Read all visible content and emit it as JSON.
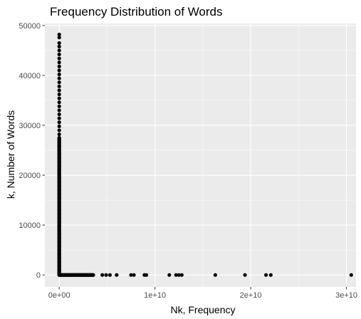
{
  "chart_data": {
    "type": "scatter",
    "title": "Frequency Distribution of Words",
    "xlabel": "Nk, Frequency",
    "ylabel": "k, Number of Words",
    "xlim": [
      -1500000000,
      31000000000
    ],
    "ylim": [
      -2400,
      50400
    ],
    "x_ticks": [
      0,
      10000000000,
      20000000000,
      30000000000
    ],
    "x_tick_labels": [
      "0e+00",
      "1e+10",
      "2e+10",
      "3e+10"
    ],
    "y_ticks": [
      0,
      10000,
      20000,
      30000,
      40000,
      50000
    ],
    "y_tick_labels": [
      "0",
      "10000",
      "20000",
      "30000",
      "40000",
      "50000"
    ],
    "grid": true,
    "legend": "none",
    "colors": {
      "panel": "#ebebeb",
      "grid": "#ffffff",
      "point": "#000000",
      "tick": "#4d4d4d"
    },
    "points": [
      {
        "x": 0,
        "y": 48200
      },
      {
        "x": 0,
        "y": 47600
      },
      {
        "x": 0,
        "y": 46500
      },
      {
        "x": 0,
        "y": 45800
      },
      {
        "x": 0,
        "y": 45000
      },
      {
        "x": 0,
        "y": 44200
      },
      {
        "x": 0,
        "y": 43400
      },
      {
        "x": 0,
        "y": 42600
      },
      {
        "x": 0,
        "y": 41800
      },
      {
        "x": 0,
        "y": 41000
      },
      {
        "x": 0,
        "y": 40200
      },
      {
        "x": 0,
        "y": 39400
      },
      {
        "x": 0,
        "y": 38600
      },
      {
        "x": 0,
        "y": 37800
      },
      {
        "x": 0,
        "y": 37000
      },
      {
        "x": 0,
        "y": 36200
      },
      {
        "x": 0,
        "y": 35400
      },
      {
        "x": 0,
        "y": 34600
      },
      {
        "x": 0,
        "y": 33800
      },
      {
        "x": 0,
        "y": 33000
      },
      {
        "x": 0,
        "y": 32200
      },
      {
        "x": 0,
        "y": 31400
      },
      {
        "x": 0,
        "y": 30600
      },
      {
        "x": 0,
        "y": 29800
      },
      {
        "x": 0,
        "y": 29000
      },
      {
        "x": 0,
        "y": 28200
      },
      {
        "x": 0,
        "y": 27400
      },
      {
        "x": 0,
        "y": 26600
      },
      {
        "x": 0,
        "y": 25800
      },
      {
        "x": 0,
        "y": 25000
      },
      {
        "x": 0,
        "y": 24200
      },
      {
        "x": 0,
        "y": 23400
      },
      {
        "x": 0,
        "y": 22600
      },
      {
        "x": 0,
        "y": 21800
      },
      {
        "x": 0,
        "y": 21000
      },
      {
        "x": 0,
        "y": 20200
      },
      {
        "x": 0,
        "y": 19400
      },
      {
        "x": 0,
        "y": 18600
      },
      {
        "x": 0,
        "y": 17800
      },
      {
        "x": 0,
        "y": 17000
      },
      {
        "x": 0,
        "y": 16200
      },
      {
        "x": 0,
        "y": 15400
      },
      {
        "x": 0,
        "y": 14600
      },
      {
        "x": 0,
        "y": 13800
      },
      {
        "x": 0,
        "y": 13000
      },
      {
        "x": 0,
        "y": 12200
      },
      {
        "x": 0,
        "y": 11400
      },
      {
        "x": 0,
        "y": 10600
      },
      {
        "x": 0,
        "y": 9800
      },
      {
        "x": 0,
        "y": 9000
      },
      {
        "x": 0,
        "y": 8200
      },
      {
        "x": 0,
        "y": 7400
      },
      {
        "x": 0,
        "y": 6600
      },
      {
        "x": 0,
        "y": 5800
      },
      {
        "x": 0,
        "y": 5000
      },
      {
        "x": 0,
        "y": 4200
      },
      {
        "x": 0,
        "y": 3400
      },
      {
        "x": 0,
        "y": 2600
      },
      {
        "x": 0,
        "y": 1800
      },
      {
        "x": 0,
        "y": 1000
      },
      {
        "x": 0,
        "y": 300
      },
      {
        "x": 100000000,
        "y": 0
      },
      {
        "x": 250000000,
        "y": 0
      },
      {
        "x": 400000000,
        "y": 0
      },
      {
        "x": 550000000,
        "y": 0
      },
      {
        "x": 700000000,
        "y": 0
      },
      {
        "x": 850000000,
        "y": 0
      },
      {
        "x": 1000000000,
        "y": 0
      },
      {
        "x": 1150000000,
        "y": 0
      },
      {
        "x": 1300000000,
        "y": 0
      },
      {
        "x": 1450000000,
        "y": 0
      },
      {
        "x": 1600000000,
        "y": 0
      },
      {
        "x": 1750000000,
        "y": 0
      },
      {
        "x": 1900000000,
        "y": 0
      },
      {
        "x": 2050000000,
        "y": 0
      },
      {
        "x": 2200000000,
        "y": 0
      },
      {
        "x": 2350000000,
        "y": 0
      },
      {
        "x": 2500000000,
        "y": 0
      },
      {
        "x": 2650000000,
        "y": 0
      },
      {
        "x": 2800000000,
        "y": 0
      },
      {
        "x": 2950000000,
        "y": 0
      },
      {
        "x": 3100000000,
        "y": 0
      },
      {
        "x": 3250000000,
        "y": 0
      },
      {
        "x": 3400000000,
        "y": 0
      },
      {
        "x": 3550000000,
        "y": 0
      },
      {
        "x": 4500000000,
        "y": 0
      },
      {
        "x": 4900000000,
        "y": 0
      },
      {
        "x": 5300000000,
        "y": 0
      },
      {
        "x": 6000000000,
        "y": 0
      },
      {
        "x": 7500000000,
        "y": 0
      },
      {
        "x": 7800000000,
        "y": 0
      },
      {
        "x": 8900000000,
        "y": 0
      },
      {
        "x": 9100000000,
        "y": 0
      },
      {
        "x": 11500000000,
        "y": 0
      },
      {
        "x": 12200000000,
        "y": 0
      },
      {
        "x": 12500000000,
        "y": 0
      },
      {
        "x": 12800000000,
        "y": 0
      },
      {
        "x": 16300000000,
        "y": 0
      },
      {
        "x": 19400000000,
        "y": 0
      },
      {
        "x": 21600000000,
        "y": 0
      },
      {
        "x": 22100000000,
        "y": 0
      },
      {
        "x": 30500000000,
        "y": 0
      }
    ]
  }
}
